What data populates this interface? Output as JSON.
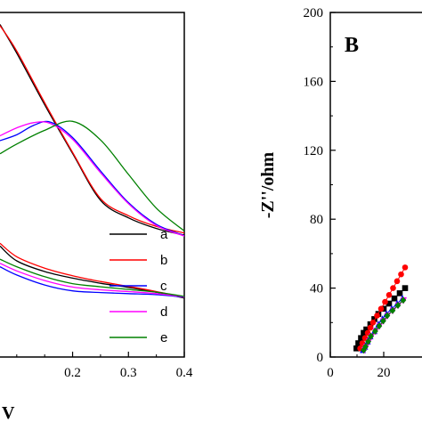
{
  "chart_data": [
    {
      "panel": "A",
      "type": "line",
      "xlabel": "V",
      "ylabel": "",
      "xlim": [
        0.07,
        0.4
      ],
      "x_ticks": [
        0.2,
        0.3,
        0.4
      ],
      "x_tick_labels": [
        "0.2",
        "0.3",
        "0.4"
      ],
      "ylim": [
        0,
        1
      ],
      "legend_position": "lower-right",
      "series": [
        {
          "name": "a",
          "color": "#000000",
          "upper": [
            [
              0.07,
              0.965
            ],
            [
              0.1,
              0.882
            ],
            [
              0.15,
              0.732
            ],
            [
              0.2,
              0.591
            ],
            [
              0.25,
              0.455
            ],
            [
              0.3,
              0.404
            ],
            [
              0.35,
              0.373
            ],
            [
              0.4,
              0.354
            ]
          ],
          "lower": [
            [
              0.07,
              0.322
            ],
            [
              0.1,
              0.279
            ],
            [
              0.15,
              0.248
            ],
            [
              0.2,
              0.229
            ],
            [
              0.25,
              0.214
            ],
            [
              0.3,
              0.202
            ],
            [
              0.35,
              0.188
            ],
            [
              0.4,
              0.171
            ]
          ]
        },
        {
          "name": "b",
          "color": "#ff0000",
          "upper": [
            [
              0.07,
              0.962
            ],
            [
              0.1,
              0.888
            ],
            [
              0.15,
              0.738
            ],
            [
              0.2,
              0.594
            ],
            [
              0.25,
              0.46
            ],
            [
              0.3,
              0.41
            ],
            [
              0.35,
              0.379
            ],
            [
              0.4,
              0.36
            ]
          ],
          "lower": [
            [
              0.07,
              0.33
            ],
            [
              0.1,
              0.291
            ],
            [
              0.15,
              0.258
            ],
            [
              0.2,
              0.236
            ],
            [
              0.25,
              0.219
            ],
            [
              0.3,
              0.205
            ],
            [
              0.35,
              0.19
            ],
            [
              0.4,
              0.173
            ]
          ]
        },
        {
          "name": "c",
          "color": "#0000ff",
          "upper": [
            [
              0.07,
              0.628
            ],
            [
              0.1,
              0.645
            ],
            [
              0.13,
              0.672
            ],
            [
              0.16,
              0.682
            ],
            [
              0.2,
              0.637
            ],
            [
              0.25,
              0.54
            ],
            [
              0.3,
              0.448
            ],
            [
              0.35,
              0.385
            ],
            [
              0.4,
              0.352
            ]
          ],
          "lower": [
            [
              0.07,
              0.262
            ],
            [
              0.1,
              0.238
            ],
            [
              0.15,
              0.209
            ],
            [
              0.2,
              0.192
            ],
            [
              0.25,
              0.187
            ],
            [
              0.3,
              0.184
            ],
            [
              0.35,
              0.181
            ],
            [
              0.4,
              0.174
            ]
          ]
        },
        {
          "name": "d",
          "color": "#ff00ff",
          "upper": [
            [
              0.07,
              0.642
            ],
            [
              0.1,
              0.665
            ],
            [
              0.13,
              0.68
            ],
            [
              0.16,
              0.678
            ],
            [
              0.2,
              0.632
            ],
            [
              0.25,
              0.535
            ],
            [
              0.3,
              0.445
            ],
            [
              0.35,
              0.382
            ],
            [
              0.4,
              0.351
            ]
          ],
          "lower": [
            [
              0.07,
              0.272
            ],
            [
              0.1,
              0.25
            ],
            [
              0.15,
              0.222
            ],
            [
              0.2,
              0.203
            ],
            [
              0.25,
              0.195
            ],
            [
              0.3,
              0.19
            ],
            [
              0.35,
              0.184
            ],
            [
              0.4,
              0.175
            ]
          ]
        },
        {
          "name": "e",
          "color": "#008000",
          "upper": [
            [
              0.07,
              0.59
            ],
            [
              0.1,
              0.618
            ],
            [
              0.15,
              0.658
            ],
            [
              0.2,
              0.684
            ],
            [
              0.25,
              0.63
            ],
            [
              0.3,
              0.53
            ],
            [
              0.35,
              0.432
            ],
            [
              0.4,
              0.366
            ]
          ],
          "lower": [
            [
              0.07,
              0.284
            ],
            [
              0.1,
              0.262
            ],
            [
              0.15,
              0.233
            ],
            [
              0.2,
              0.213
            ],
            [
              0.25,
              0.204
            ],
            [
              0.3,
              0.196
            ],
            [
              0.35,
              0.188
            ],
            [
              0.4,
              0.176
            ]
          ]
        }
      ]
    },
    {
      "panel": "B",
      "panel_label": "B",
      "type": "scatter",
      "xlabel": "",
      "ylabel": "-Z''/ohm",
      "xlim": [
        0,
        28
      ],
      "x_ticks": [
        0,
        20
      ],
      "x_tick_labels": [
        "0",
        "20"
      ],
      "ylim": [
        0,
        200
      ],
      "y_ticks": [
        0,
        40,
        80,
        120,
        160,
        200
      ],
      "y_tick_labels": [
        "0",
        "40",
        "80",
        "120",
        "160",
        "200"
      ],
      "series": [
        {
          "name": "a",
          "color": "#000000",
          "marker": "square",
          "points": [
            [
              9.8,
              5
            ],
            [
              10.5,
              8
            ],
            [
              11.5,
              11
            ],
            [
              12.5,
              14
            ],
            [
              13.5,
              16
            ],
            [
              15,
              19
            ],
            [
              16.5,
              22
            ],
            [
              18,
              25
            ],
            [
              20,
              28
            ],
            [
              22,
              31
            ],
            [
              24,
              34
            ],
            [
              26,
              37
            ],
            [
              28,
              40
            ]
          ]
        },
        {
          "name": "b",
          "color": "#ff0000",
          "marker": "circle",
          "points": [
            [
              11.2,
              5
            ],
            [
              12,
              8
            ],
            [
              13,
              11
            ],
            [
              14,
              14
            ],
            [
              15,
              17
            ],
            [
              16,
              20
            ],
            [
              17.5,
              24
            ],
            [
              19,
              28
            ],
            [
              20.5,
              32
            ],
            [
              22,
              36
            ],
            [
              23.5,
              40
            ],
            [
              25,
              44
            ],
            [
              26.5,
              48
            ],
            [
              28,
              52
            ]
          ]
        },
        {
          "name": "c",
          "color": "#0000ff",
          "marker": "triangle",
          "points": [
            [
              12.2,
              4
            ],
            [
              13,
              6
            ],
            [
              14,
              9
            ],
            [
              15,
              12
            ],
            [
              16.5,
              15
            ],
            [
              18,
              19
            ],
            [
              19.5,
              22
            ],
            [
              21,
              25
            ],
            [
              23,
              28
            ],
            [
              25,
              31
            ],
            [
              27,
              34
            ]
          ]
        },
        {
          "name": "d",
          "color": "#ff00ff",
          "marker": "triangle-down",
          "points": [
            [
              12.8,
              4
            ],
            [
              13.5,
              6
            ],
            [
              14.5,
              9
            ],
            [
              15.5,
              12
            ],
            [
              17,
              15
            ],
            [
              18.5,
              18
            ],
            [
              20,
              21
            ],
            [
              21.5,
              24
            ],
            [
              23.5,
              27
            ],
            [
              25.5,
              30
            ],
            [
              27.5,
              33
            ]
          ]
        },
        {
          "name": "e",
          "color": "#008000",
          "marker": "diamond",
          "points": [
            [
              12.5,
              4
            ],
            [
              13.2,
              6
            ],
            [
              14.2,
              9
            ],
            [
              15.2,
              12
            ],
            [
              16.8,
              15
            ],
            [
              18.3,
              18
            ],
            [
              19.8,
              21
            ],
            [
              21.3,
              24
            ],
            [
              23.3,
              27
            ],
            [
              25.3,
              30
            ],
            [
              27.3,
              33
            ]
          ]
        }
      ]
    }
  ]
}
